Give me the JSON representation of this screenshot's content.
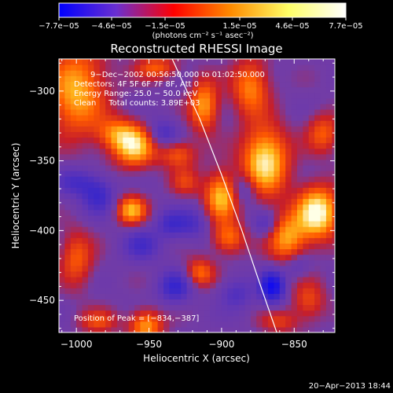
{
  "chart_data": {
    "type": "heatmap",
    "title": "Reconstructed RHESSI Image",
    "xlabel": "Heliocentric X (arcsec)",
    "ylabel": "Heliocentric Y (arcsec)",
    "xlim": [
      -1012,
      -822
    ],
    "ylim": [
      -473,
      -277
    ],
    "x_ticks": [
      -1000,
      -950,
      -900,
      -850
    ],
    "x_tick_labels": [
      "−1000",
      "−950",
      "−900",
      "−850"
    ],
    "y_ticks": [
      -300,
      -350,
      -400,
      -450
    ],
    "y_tick_labels": [
      "−300",
      "−350",
      "−400",
      "−450"
    ],
    "colorbar": {
      "min": -7.7e-05,
      "max": 7.7e-05,
      "tick_labels": [
        "−7.7e−05",
        "−4.6e−05",
        "−1.5e−05",
        "1.5e−05",
        "4.6e−05",
        "7.7e−05"
      ],
      "units": "(photons cm⁻² s⁻¹ asec⁻²)",
      "colors": [
        "#0000ff",
        "#6a2fd0",
        "#ff0000",
        "#ff8c00",
        "#ffff66",
        "#ffffff"
      ]
    },
    "annotations": [
      "9−Dec−2002 00:56:50.000 to 01:02:50.000",
      "Detectors: 4F 5F 6F 7F 8F, Att 0",
      "Energy Range: 25.0 − 50.0 keV",
      "Clean     Total counts: 3.89E+03"
    ],
    "peak_label": "Position of Peak = [−834,−387]",
    "limb_curve": [
      [
        -934,
        -277
      ],
      [
        -915,
        -320
      ],
      [
        -900,
        -360
      ],
      [
        -886,
        -400
      ],
      [
        -873,
        -440
      ],
      [
        -862,
        -473
      ]
    ],
    "sources": [
      {
        "x": -1000,
        "y": -300,
        "v": 5.5e-05,
        "sx": 14,
        "sy": 22
      },
      {
        "x": -960,
        "y": -340,
        "v": 6e-05,
        "sx": 10,
        "sy": 10
      },
      {
        "x": -972,
        "y": -330,
        "v": 3.8e-05,
        "sx": 10,
        "sy": 8
      },
      {
        "x": -945,
        "y": -283,
        "v": 3.5e-05,
        "sx": 10,
        "sy": 6
      },
      {
        "x": -962,
        "y": -385,
        "v": 5.5e-05,
        "sx": 7,
        "sy": 7
      },
      {
        "x": -930,
        "y": -345,
        "v": 3.5e-05,
        "sx": 9,
        "sy": 7
      },
      {
        "x": -1000,
        "y": -420,
        "v": 3.5e-05,
        "sx": 8,
        "sy": 14
      },
      {
        "x": -985,
        "y": -465,
        "v": 3e-05,
        "sx": 9,
        "sy": 6
      },
      {
        "x": -952,
        "y": -468,
        "v": 5e-05,
        "sx": 8,
        "sy": 8
      },
      {
        "x": -912,
        "y": -310,
        "v": 5e-05,
        "sx": 7,
        "sy": 13
      },
      {
        "x": -900,
        "y": -375,
        "v": 6e-05,
        "sx": 8,
        "sy": 12
      },
      {
        "x": -870,
        "y": -350,
        "v": 7e-05,
        "sx": 11,
        "sy": 17
      },
      {
        "x": -880,
        "y": -297,
        "v": 4.5e-05,
        "sx": 9,
        "sy": 14
      },
      {
        "x": -895,
        "y": -405,
        "v": 4e-05,
        "sx": 8,
        "sy": 8
      },
      {
        "x": -855,
        "y": -405,
        "v": 5e-05,
        "sx": 9,
        "sy": 12
      },
      {
        "x": -834,
        "y": -387,
        "v": 7.7e-05,
        "sx": 10,
        "sy": 13
      },
      {
        "x": -830,
        "y": -330,
        "v": 3.5e-05,
        "sx": 8,
        "sy": 10
      },
      {
        "x": -915,
        "y": -430,
        "v": 4e-05,
        "sx": 7,
        "sy": 7
      },
      {
        "x": -840,
        "y": -450,
        "v": 3e-05,
        "sx": 8,
        "sy": 10
      },
      {
        "x": -860,
        "y": -465,
        "v": 2.5e-05,
        "sx": 9,
        "sy": 6
      },
      {
        "x": -925,
        "y": -365,
        "v": 2.5e-05,
        "sx": 7,
        "sy": 7
      },
      {
        "x": -1000,
        "y": -365,
        "v": -3e-05,
        "sx": 10,
        "sy": 7
      },
      {
        "x": -985,
        "y": -375,
        "v": -3.5e-05,
        "sx": 8,
        "sy": 9
      },
      {
        "x": -955,
        "y": -410,
        "v": -3e-05,
        "sx": 9,
        "sy": 8
      },
      {
        "x": -932,
        "y": -440,
        "v": -4e-05,
        "sx": 8,
        "sy": 8
      },
      {
        "x": -935,
        "y": -395,
        "v": -3e-05,
        "sx": 7,
        "sy": 7
      },
      {
        "x": -940,
        "y": -330,
        "v": -3e-05,
        "sx": 7,
        "sy": 7
      },
      {
        "x": -920,
        "y": -395,
        "v": -2.5e-05,
        "sx": 8,
        "sy": 8
      },
      {
        "x": -885,
        "y": -370,
        "v": -2.5e-05,
        "sx": 7,
        "sy": 8
      },
      {
        "x": -865,
        "y": -440,
        "v": -6.5e-05,
        "sx": 6,
        "sy": 8
      },
      {
        "x": -870,
        "y": -395,
        "v": -2.5e-05,
        "sx": 6,
        "sy": 6
      },
      {
        "x": -890,
        "y": -445,
        "v": -2.5e-05,
        "sx": 8,
        "sy": 8
      },
      {
        "x": -848,
        "y": -425,
        "v": -2e-05,
        "sx": 6,
        "sy": 6
      }
    ]
  },
  "footer": {
    "timestamp": "20−Apr−2013 18:44"
  }
}
